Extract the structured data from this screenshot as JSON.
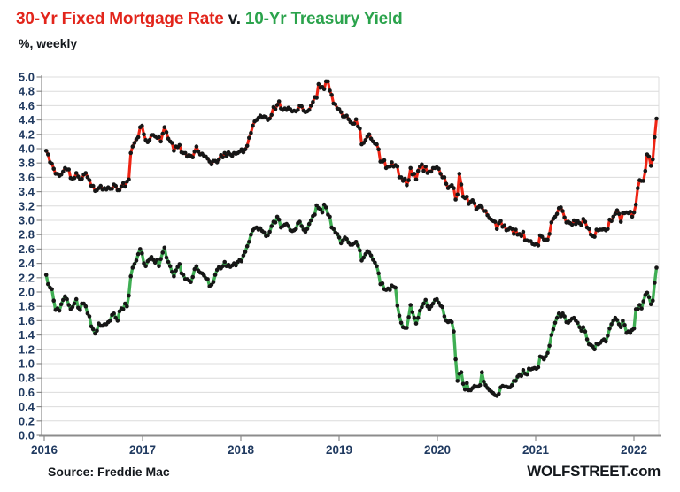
{
  "title": {
    "series1": "30-Yr Fixed Mortgage Rate",
    "separator": " v. ",
    "series2": "10-Yr Treasury Yield"
  },
  "subtitle": "%, weekly",
  "footer": {
    "source": "Source: Freddie Mac",
    "brand": "WOLFSTREET.com"
  },
  "colors": {
    "title_red": "#e2251b",
    "title_green": "#2ba34c",
    "mortgage_line": "#ee2414",
    "treasury_line": "#3fae53",
    "marker": "#161616",
    "axis_label": "#203a60",
    "grid": "#dcdcdc",
    "axis": "#8c8c8c"
  },
  "chart_data": {
    "type": "line",
    "title": "30-Yr Fixed Mortgage Rate v. 10-Yr Treasury Yield",
    "subtitle": "%, weekly",
    "x_unit": "weekly observations",
    "x_start": 2016.02,
    "x_end": 2022.23,
    "xticks": [
      2016,
      2017,
      2018,
      2019,
      2020,
      2021,
      2022
    ],
    "ylim": [
      0.0,
      5.0
    ],
    "ytick_step": 0.2,
    "grid": "horizontal",
    "legend_position": "none",
    "series": [
      {
        "name": "30-Yr Fixed Mortgage Rate",
        "color": "#ee2414",
        "marker_color": "#161616",
        "values": [
          3.97,
          3.92,
          3.81,
          3.79,
          3.72,
          3.65,
          3.65,
          3.62,
          3.64,
          3.68,
          3.73,
          3.71,
          3.71,
          3.59,
          3.58,
          3.59,
          3.66,
          3.61,
          3.57,
          3.58,
          3.64,
          3.66,
          3.6,
          3.56,
          3.48,
          3.48,
          3.41,
          3.42,
          3.45,
          3.48,
          3.43,
          3.45,
          3.43,
          3.46,
          3.44,
          3.44,
          3.5,
          3.48,
          3.42,
          3.42,
          3.47,
          3.52,
          3.47,
          3.54,
          3.57,
          3.94,
          4.03,
          4.08,
          4.13,
          4.16,
          4.3,
          4.32,
          4.2,
          4.12,
          4.09,
          4.12,
          4.19,
          4.19,
          4.17,
          4.15,
          4.16,
          4.1,
          4.21,
          4.3,
          4.23,
          4.14,
          4.1,
          4.08,
          3.97,
          4.03,
          4.02,
          4.05,
          3.95,
          3.94,
          3.94,
          3.89,
          3.91,
          3.9,
          3.88,
          3.96,
          4.03,
          3.96,
          3.92,
          3.93,
          3.9,
          3.89,
          3.86,
          3.82,
          3.78,
          3.83,
          3.83,
          3.81,
          3.85,
          3.91,
          3.88,
          3.94,
          3.9,
          3.95,
          3.92,
          3.9,
          3.94,
          3.93,
          3.94,
          3.96,
          3.99,
          3.95,
          3.99,
          4.04,
          4.15,
          4.22,
          4.32,
          4.38,
          4.4,
          4.43,
          4.46,
          4.44,
          4.45,
          4.44,
          4.4,
          4.42,
          4.47,
          4.58,
          4.55,
          4.61,
          4.66,
          4.56,
          4.54,
          4.56,
          4.54,
          4.57,
          4.55,
          4.52,
          4.53,
          4.52,
          4.54,
          4.6,
          4.59,
          4.53,
          4.51,
          4.52,
          4.54,
          4.6,
          4.65,
          4.72,
          4.71,
          4.9,
          4.85,
          4.86,
          4.83,
          4.94,
          4.94,
          4.81,
          4.75,
          4.63,
          4.62,
          4.56,
          4.55,
          4.51,
          4.45,
          4.45,
          4.46,
          4.41,
          4.37,
          4.35,
          4.35,
          4.41,
          4.31,
          4.28,
          4.06,
          4.08,
          4.12,
          4.17,
          4.2,
          4.14,
          4.1,
          4.07,
          4.06,
          3.99,
          3.82,
          3.82,
          3.84,
          3.73,
          3.75,
          3.75,
          3.81,
          3.75,
          3.77,
          3.75,
          3.6,
          3.6,
          3.55,
          3.58,
          3.49,
          3.56,
          3.73,
          3.64,
          3.65,
          3.57,
          3.69,
          3.75,
          3.78,
          3.69,
          3.75,
          3.66,
          3.68,
          3.68,
          3.73,
          3.73,
          3.74,
          3.72,
          3.65,
          3.6,
          3.6,
          3.51,
          3.45,
          3.47,
          3.49,
          3.45,
          3.29,
          3.36,
          3.65,
          3.5,
          3.33,
          3.31,
          3.33,
          3.23,
          3.26,
          3.28,
          3.24,
          3.15,
          3.18,
          3.21,
          3.18,
          3.13,
          3.13,
          3.07,
          3.03,
          3.01,
          2.99,
          2.98,
          2.88,
          2.96,
          2.99,
          2.91,
          2.93,
          2.86,
          2.87,
          2.9,
          2.88,
          2.81,
          2.87,
          2.8,
          2.81,
          2.78,
          2.84,
          2.72,
          2.72,
          2.71,
          2.71,
          2.67,
          2.66,
          2.67,
          2.65,
          2.79,
          2.77,
          2.73,
          2.73,
          2.73,
          2.81,
          2.97,
          3.02,
          3.05,
          3.09,
          3.17,
          3.18,
          3.13,
          3.04,
          2.97,
          2.98,
          2.96,
          2.94,
          3.0,
          2.95,
          2.99,
          2.96,
          2.93,
          3.02,
          2.98,
          2.9,
          2.88,
          2.8,
          2.78,
          2.77,
          2.87,
          2.86,
          2.87,
          2.87,
          2.88,
          2.86,
          2.88,
          3.01,
          2.99,
          3.05,
          3.09,
          3.14,
          3.09,
          2.98,
          3.1,
          3.1,
          3.11,
          3.1,
          3.12,
          3.05,
          3.11,
          3.22,
          3.45,
          3.56,
          3.55,
          3.55,
          3.69,
          3.92,
          3.89,
          3.76,
          3.85,
          4.16,
          4.42
        ]
      },
      {
        "name": "10-Yr Treasury Yield",
        "color": "#3fae53",
        "marker_color": "#161616",
        "values": [
          2.24,
          2.11,
          2.06,
          2.04,
          1.88,
          1.75,
          1.77,
          1.74,
          1.83,
          1.89,
          1.94,
          1.9,
          1.82,
          1.76,
          1.79,
          1.84,
          1.9,
          1.78,
          1.75,
          1.84,
          1.84,
          1.8,
          1.7,
          1.66,
          1.52,
          1.48,
          1.42,
          1.46,
          1.56,
          1.53,
          1.53,
          1.55,
          1.55,
          1.58,
          1.6,
          1.68,
          1.7,
          1.64,
          1.6,
          1.73,
          1.77,
          1.76,
          1.84,
          1.8,
          1.95,
          2.22,
          2.34,
          2.39,
          2.44,
          2.53,
          2.6,
          2.54,
          2.4,
          2.36,
          2.43,
          2.46,
          2.49,
          2.45,
          2.41,
          2.45,
          2.36,
          2.46,
          2.55,
          2.62,
          2.48,
          2.42,
          2.36,
          2.28,
          2.22,
          2.3,
          2.35,
          2.39,
          2.26,
          2.24,
          2.18,
          2.18,
          2.16,
          2.14,
          2.21,
          2.32,
          2.36,
          2.3,
          2.27,
          2.26,
          2.23,
          2.19,
          2.18,
          2.08,
          2.1,
          2.14,
          2.24,
          2.31,
          2.35,
          2.33,
          2.36,
          2.42,
          2.36,
          2.38,
          2.35,
          2.37,
          2.4,
          2.37,
          2.42,
          2.45,
          2.43,
          2.51,
          2.56,
          2.64,
          2.7,
          2.8,
          2.86,
          2.89,
          2.9,
          2.87,
          2.89,
          2.85,
          2.83,
          2.78,
          2.79,
          2.84,
          2.92,
          2.98,
          2.97,
          3.05,
          3.01,
          2.9,
          2.92,
          2.94,
          2.95,
          2.92,
          2.86,
          2.85,
          2.86,
          2.88,
          2.96,
          2.98,
          2.92,
          2.87,
          2.84,
          2.88,
          2.95,
          3.0,
          3.06,
          3.08,
          3.21,
          3.17,
          3.15,
          3.11,
          3.22,
          3.18,
          3.08,
          3.05,
          2.9,
          2.88,
          2.83,
          2.81,
          2.76,
          2.68,
          2.72,
          2.76,
          2.74,
          2.69,
          2.66,
          2.66,
          2.68,
          2.7,
          2.65,
          2.58,
          2.44,
          2.48,
          2.53,
          2.57,
          2.55,
          2.51,
          2.45,
          2.41,
          2.36,
          2.26,
          2.11,
          2.12,
          2.04,
          2.03,
          2.05,
          2.03,
          2.09,
          2.07,
          2.06,
          1.81,
          1.67,
          1.57,
          1.51,
          1.5,
          1.5,
          1.65,
          1.82,
          1.72,
          1.64,
          1.56,
          1.64,
          1.74,
          1.79,
          1.84,
          1.89,
          1.8,
          1.76,
          1.8,
          1.84,
          1.89,
          1.9,
          1.85,
          1.81,
          1.79,
          1.66,
          1.6,
          1.58,
          1.6,
          1.58,
          1.45,
          1.06,
          0.76,
          0.86,
          0.88,
          0.72,
          0.64,
          0.73,
          0.63,
          0.63,
          0.66,
          0.69,
          0.68,
          0.68,
          0.7,
          0.88,
          0.75,
          0.7,
          0.66,
          0.63,
          0.61,
          0.59,
          0.56,
          0.55,
          0.58,
          0.67,
          0.69,
          0.68,
          0.68,
          0.67,
          0.67,
          0.7,
          0.76,
          0.76,
          0.82,
          0.85,
          0.83,
          0.91,
          0.86,
          0.85,
          0.93,
          0.92,
          0.93,
          0.94,
          0.93,
          0.95,
          1.1,
          1.09,
          1.06,
          1.1,
          1.15,
          1.25,
          1.4,
          1.48,
          1.57,
          1.64,
          1.7,
          1.66,
          1.7,
          1.66,
          1.58,
          1.57,
          1.6,
          1.63,
          1.64,
          1.6,
          1.57,
          1.51,
          1.46,
          1.51,
          1.45,
          1.34,
          1.27,
          1.26,
          1.24,
          1.2,
          1.28,
          1.27,
          1.29,
          1.32,
          1.34,
          1.31,
          1.39,
          1.49,
          1.55,
          1.6,
          1.64,
          1.61,
          1.55,
          1.51,
          1.6,
          1.54,
          1.43,
          1.45,
          1.43,
          1.47,
          1.49,
          1.76,
          1.76,
          1.82,
          1.77,
          1.87,
          1.96,
          1.99,
          1.93,
          1.83,
          1.88,
          2.13,
          2.34
        ]
      }
    ]
  }
}
